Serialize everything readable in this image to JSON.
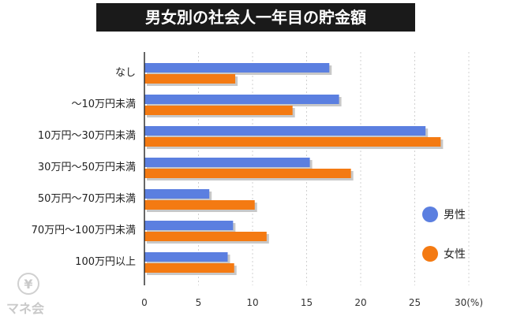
{
  "chart_data": {
    "type": "bar",
    "orientation": "horizontal",
    "title": "男女別の社会人一年目の貯金額",
    "categories": [
      "なし",
      "〜10万円未満",
      "10万円〜30万円未満",
      "30万円〜50万円未満",
      "50万円〜70万円未満",
      "70万円〜100万円未満",
      "100万円以上"
    ],
    "series": [
      {
        "name": "男性",
        "color": "#5b7fe0",
        "values": [
          17.1,
          18.0,
          26.0,
          15.3,
          6.0,
          8.2,
          7.7
        ]
      },
      {
        "name": "女性",
        "color": "#f47a12",
        "values": [
          8.4,
          13.7,
          27.4,
          19.1,
          10.2,
          11.3,
          8.3
        ]
      }
    ],
    "xlim": [
      0,
      30
    ],
    "xticks": [
      "0",
      "5",
      "10",
      "15",
      "20",
      "25",
      "30(%)"
    ],
    "grid": "dashed vertical",
    "legend_position": "right"
  },
  "watermark": {
    "text": "マネ会",
    "symbol": "¥"
  },
  "colors": {
    "title_bg": "#1a1a1a",
    "title_text": "#ffffff",
    "bar_shadow": "#c8c8c8"
  }
}
